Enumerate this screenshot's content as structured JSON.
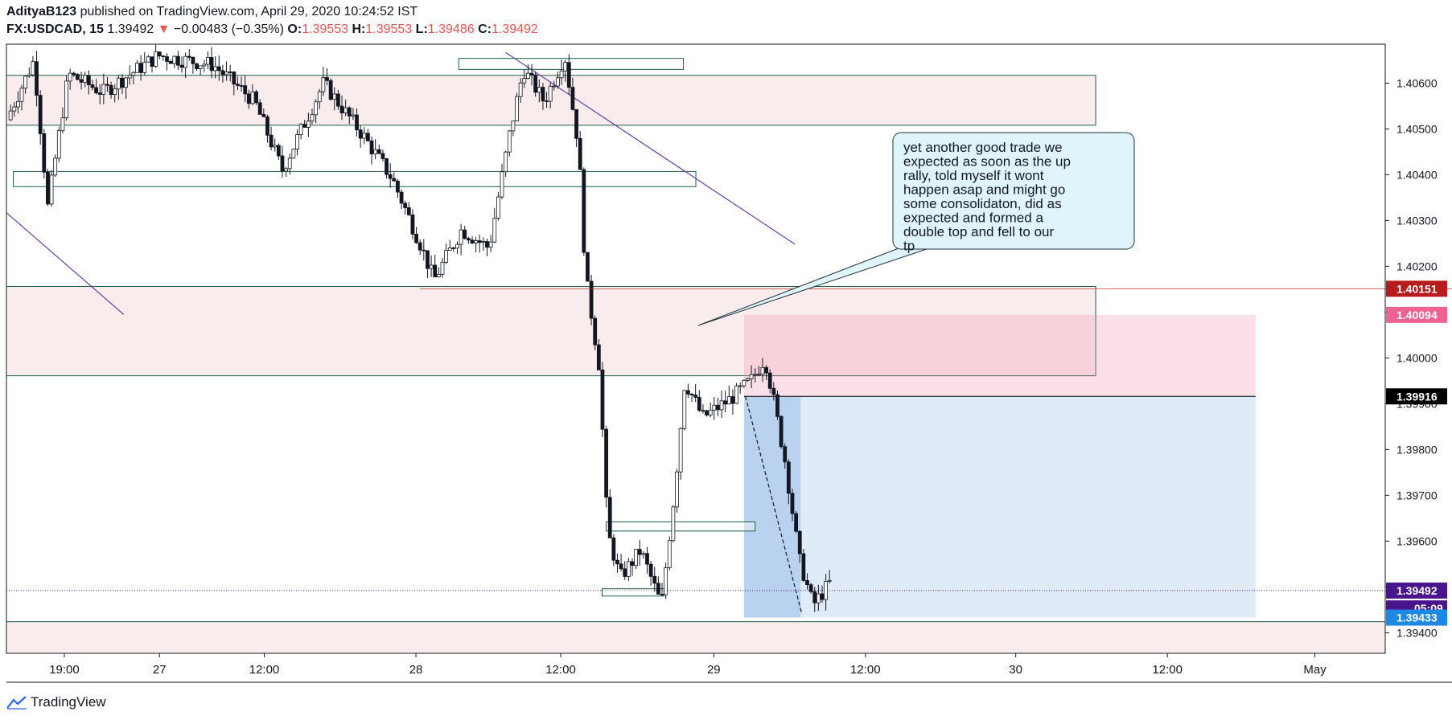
{
  "header": {
    "author": "AdityaB123",
    "published": "published on TradingView.com, April 29, 2020 10:24:52 IST",
    "symbol": "FX:USDCAD, 15",
    "last": "1.39492",
    "change_arrow": "▼",
    "change": "−0.00483 (−0.35%)",
    "o_label": "O:",
    "o": "1.39553",
    "h_label": "H:",
    "h": "1.39553",
    "l_label": "L:",
    "l": "1.39486",
    "c_label": "C:",
    "c": "1.39492"
  },
  "footer": {
    "brand": "TradingView"
  },
  "chart_data": {
    "type": "candlestick",
    "ylim": [
      1.39355,
      1.40685
    ],
    "y_ticks": [
      "1.40600",
      "1.40500",
      "1.40400",
      "1.40300",
      "1.40200",
      "1.40100",
      "1.40000",
      "1.39900",
      "1.39800",
      "1.39700",
      "1.39600",
      "1.39500",
      "1.39400"
    ],
    "x_ticks": [
      "19:00",
      "27",
      "12:00",
      "28",
      "12:00",
      "29",
      "12:00",
      "30",
      "12:00",
      "May"
    ],
    "price_labels": [
      {
        "value": "1.40151",
        "price": 1.40151,
        "color": "#b71c1c"
      },
      {
        "value": "1.40094",
        "price": 1.40094,
        "color": "#f06292"
      },
      {
        "value": "1.39916",
        "price": 1.39916,
        "color": "#000000"
      },
      {
        "value": "1.39492",
        "price": 1.39492,
        "color": "#4a148c"
      },
      {
        "value": "05:09",
        "price": 1.39453,
        "color": "#4a148c"
      },
      {
        "value": "1.39433",
        "price": 1.39433,
        "color": "#1e88e5"
      }
    ],
    "zones": [
      {
        "x0": 0.0,
        "x1": 0.79,
        "top": 1.40617,
        "bottom": 1.40508
      },
      {
        "x0": 0.0,
        "x1": 0.79,
        "top": 1.40156,
        "bottom": 1.39961
      },
      {
        "x0": 0.0,
        "x1": 1.0,
        "top": 1.39424,
        "bottom": 1.3928
      }
    ],
    "boxes": [
      {
        "x0": 0.328,
        "x1": 0.491,
        "top": 1.40654,
        "bottom": 1.4063
      },
      {
        "x0": 0.005,
        "x1": 0.5,
        "top": 1.40407,
        "bottom": 1.40374
      },
      {
        "x0": 0.435,
        "x1": 0.543,
        "top": 1.39642,
        "bottom": 1.39622
      },
      {
        "x0": 0.432,
        "x1": 0.477,
        "top": 1.39496,
        "bottom": 1.3948
      }
    ],
    "trendlines": [
      {
        "x0": 0.0,
        "y0": 1.40317,
        "x1": 0.085,
        "y1": 1.40095
      },
      {
        "x0": 0.362,
        "y0": 1.40667,
        "x1": 0.572,
        "y1": 1.40248
      }
    ],
    "position": {
      "x0": 0.535,
      "x1": 0.906,
      "stop": 1.40094,
      "entry": 1.39916,
      "target": 1.39433,
      "filled_x1": 0.576
    },
    "annotation": "yet another good trade we expected as soon as the up rally, told myself it wont happen asap and might go some consolidaton, did as expected and formed a double top and fell to our tp",
    "current_price": 1.39492
  }
}
